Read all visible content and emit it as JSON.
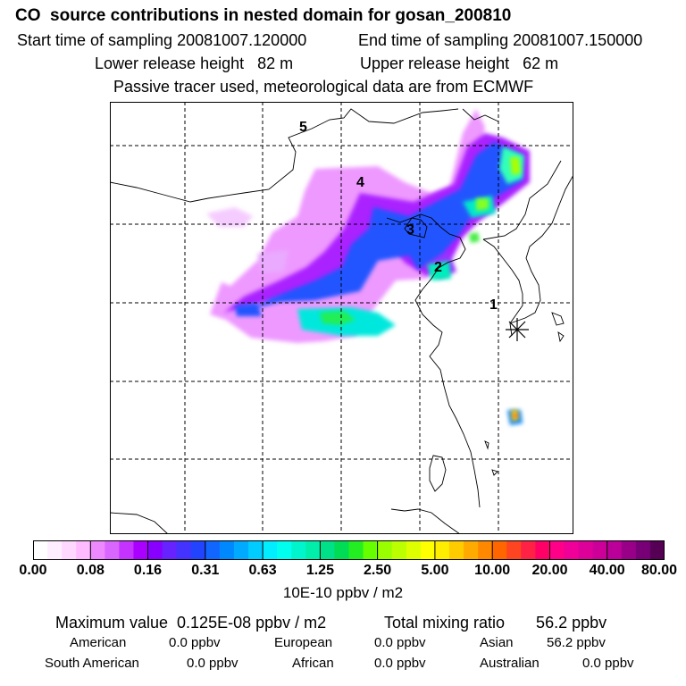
{
  "header": {
    "title": "CO  source contributions in nested domain for gosan_200810",
    "start_time": "Start time of sampling 20081007.120000",
    "end_time": "End time of sampling 20081007.150000",
    "lower_release": "Lower release height   82 m",
    "upper_release": "Upper release height   62 m",
    "tracer_note": "Passive tracer used, meteorological data are from ECMWF"
  },
  "map": {
    "trajectory_labels": [
      "1",
      "2",
      "3",
      "4",
      "5"
    ],
    "receptor_marker": "asterisk"
  },
  "colorbar": {
    "tick_labels": [
      "0.00",
      "0.08",
      "0.16",
      "0.31",
      "0.63",
      "1.25",
      "2.50",
      "5.00",
      "10.00",
      "20.00",
      "40.00",
      "80.00"
    ],
    "unit_label": "10E-10 ppbv / m2",
    "colors": [
      "#ffffff",
      "#ffeeff",
      "#ffd8ff",
      "#ffbbff",
      "#ee88ff",
      "#d966ff",
      "#c433ff",
      "#aa00ff",
      "#8800ff",
      "#6622ff",
      "#4433ff",
      "#2244ff",
      "#1166ff",
      "#0088ff",
      "#00aaff",
      "#00ccff",
      "#00eeff",
      "#00ffee",
      "#00f5cc",
      "#00eeaa",
      "#00e088",
      "#00dd55",
      "#22ee22",
      "#66ff00",
      "#99ff00",
      "#bbff00",
      "#ddff00",
      "#ffff00",
      "#ffee00",
      "#ffcc00",
      "#ffaa00",
      "#ff8800",
      "#ff6600",
      "#ff4422",
      "#ff2244",
      "#ff0066",
      "#ff0088",
      "#ee0099",
      "#dd0099",
      "#cc0099",
      "#bb0099",
      "#990088",
      "#770077",
      "#550055"
    ]
  },
  "footer": {
    "max_value": "Maximum value  0.125E-08 ppbv / m2",
    "total_mixing": "Total mixing ratio       56.2 ppbv",
    "american": "American",
    "american_val": "0.0 ppbv",
    "european": "European",
    "european_val": "0.0 ppbv",
    "asian": "Asian",
    "asian_val": "56.2 ppbv",
    "south_american": "South American",
    "south_american_val": "0.0 ppbv",
    "african": "African",
    "african_val": "0.0 ppbv",
    "australian": "Australian",
    "australian_val": "0.0 ppbv"
  }
}
